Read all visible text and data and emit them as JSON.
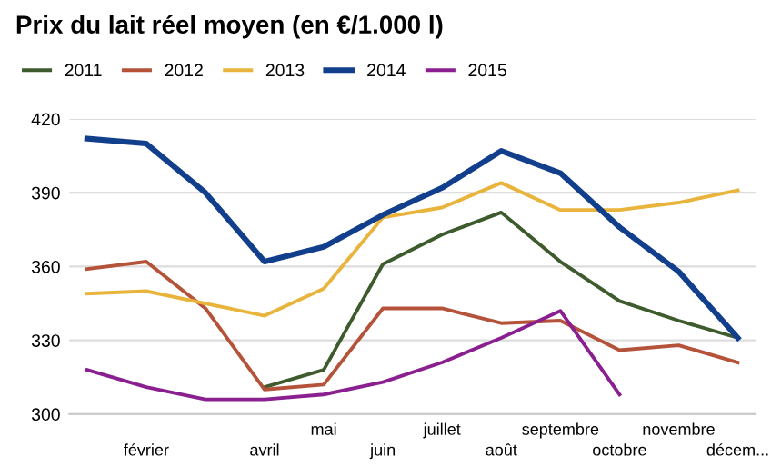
{
  "chart_data": {
    "type": "line",
    "title": "Prix du lait réel moyen (en €/1.000 l)",
    "categories": [
      null,
      "février",
      null,
      "avril",
      "mai",
      "juin",
      "juillet",
      "août",
      "septembre",
      "octobre",
      "novembre",
      "décem..."
    ],
    "series": [
      {
        "name": "2011",
        "color": "#3e5b2e",
        "values": [
          null,
          null,
          null,
          311,
          318,
          361,
          373,
          382,
          362,
          346,
          338,
          331
        ]
      },
      {
        "name": "2012",
        "color": "#b5523a",
        "values": [
          359,
          362,
          343,
          310,
          312,
          343,
          343,
          337,
          338,
          326,
          328,
          321
        ]
      },
      {
        "name": "2013",
        "color": "#e8b43c",
        "values": [
          349,
          350,
          345,
          340,
          351,
          380,
          384,
          394,
          383,
          383,
          386,
          391
        ]
      },
      {
        "name": "2014",
        "color": "#123f8c",
        "values": [
          412,
          410,
          390,
          362,
          368,
          381,
          392,
          407,
          398,
          376,
          358,
          331
        ]
      },
      {
        "name": "2015",
        "color": "#8a1f8f",
        "values": [
          318,
          311,
          306,
          306,
          308,
          313,
          321,
          331,
          342,
          308,
          null,
          null
        ]
      }
    ],
    "ylim": [
      300,
      420
    ],
    "yticks": [
      300,
      330,
      360,
      390,
      420
    ],
    "grid": "y",
    "legend": "top left"
  }
}
